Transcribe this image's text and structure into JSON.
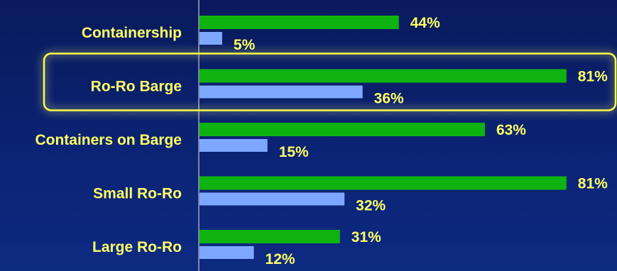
{
  "chart_data": {
    "type": "bar",
    "orientation": "horizontal",
    "categories": [
      "Containership",
      "Ro-Ro Barge",
      "Containers on Barge",
      "Small Ro-Ro",
      "Large Ro-Ro"
    ],
    "series": [
      {
        "values": [
          44,
          81,
          63,
          81,
          31
        ],
        "color": "#0fb30f"
      },
      {
        "values": [
          5,
          36,
          15,
          32,
          12
        ],
        "color": "#7ea8ff"
      }
    ],
    "value_suffix": "%",
    "highlighted_category": "Ro-Ro Barge",
    "xlim": [
      0,
      100
    ],
    "grid": false,
    "legend": "none"
  }
}
